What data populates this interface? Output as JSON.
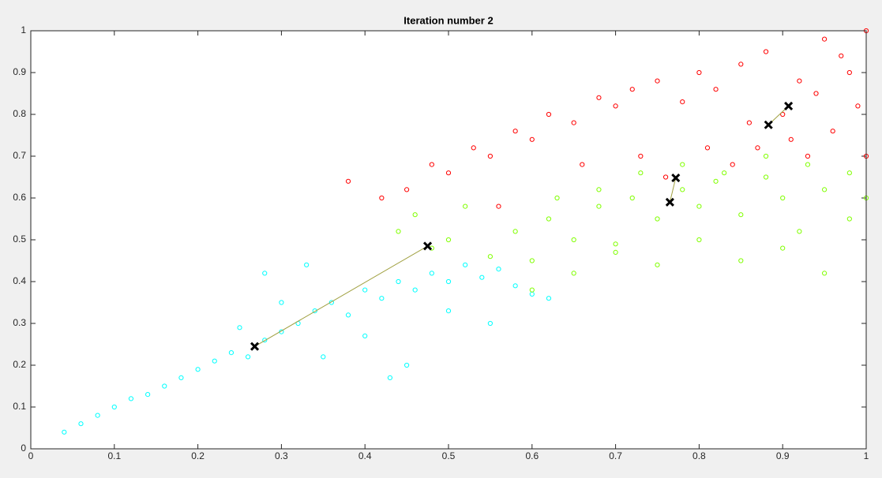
{
  "chart_data": {
    "type": "scatter",
    "title": "Iteration number 2",
    "xlim": [
      0,
      1
    ],
    "ylim": [
      0,
      1
    ],
    "xticks": [
      0,
      0.1,
      0.2,
      0.3,
      0.4,
      0.5,
      0.6,
      0.7,
      0.8,
      0.9,
      1
    ],
    "yticks": [
      0,
      0.1,
      0.2,
      0.3,
      0.4,
      0.5,
      0.6,
      0.7,
      0.8,
      0.9,
      1
    ],
    "series": [
      {
        "color": "#00ffff",
        "x": [
          0.04,
          0.06,
          0.08,
          0.1,
          0.12,
          0.14,
          0.16,
          0.18,
          0.2,
          0.22,
          0.24,
          0.26,
          0.28,
          0.3,
          0.32,
          0.34,
          0.36,
          0.38,
          0.4,
          0.42,
          0.44,
          0.46,
          0.48,
          0.5,
          0.52,
          0.54,
          0.56,
          0.58,
          0.6,
          0.62,
          0.25,
          0.3,
          0.35,
          0.4,
          0.45,
          0.5,
          0.55,
          0.28,
          0.33,
          0.43
        ],
        "values": [
          0.04,
          0.06,
          0.08,
          0.1,
          0.12,
          0.13,
          0.15,
          0.17,
          0.19,
          0.21,
          0.23,
          0.22,
          0.26,
          0.28,
          0.3,
          0.33,
          0.35,
          0.32,
          0.38,
          0.36,
          0.4,
          0.38,
          0.42,
          0.4,
          0.44,
          0.41,
          0.43,
          0.39,
          0.37,
          0.36,
          0.29,
          0.35,
          0.22,
          0.27,
          0.2,
          0.33,
          0.3,
          0.42,
          0.44,
          0.17
        ]
      },
      {
        "color": "#80ff00",
        "x": [
          0.44,
          0.46,
          0.48,
          0.5,
          0.52,
          0.55,
          0.58,
          0.6,
          0.62,
          0.65,
          0.68,
          0.7,
          0.72,
          0.75,
          0.78,
          0.8,
          0.82,
          0.85,
          0.88,
          0.9,
          0.92,
          0.95,
          0.98,
          1.0,
          0.6,
          0.65,
          0.7,
          0.75,
          0.8,
          0.85,
          0.9,
          0.95,
          0.63,
          0.68,
          0.73,
          0.78,
          0.83,
          0.88,
          0.93,
          0.98
        ],
        "values": [
          0.52,
          0.56,
          0.48,
          0.5,
          0.58,
          0.46,
          0.52,
          0.45,
          0.55,
          0.5,
          0.58,
          0.49,
          0.6,
          0.55,
          0.62,
          0.58,
          0.64,
          0.56,
          0.65,
          0.6,
          0.52,
          0.62,
          0.55,
          0.6,
          0.38,
          0.42,
          0.47,
          0.44,
          0.5,
          0.45,
          0.48,
          0.42,
          0.6,
          0.62,
          0.66,
          0.68,
          0.66,
          0.7,
          0.68,
          0.66
        ]
      },
      {
        "color": "#ff0000",
        "x": [
          0.38,
          0.42,
          0.45,
          0.48,
          0.5,
          0.53,
          0.55,
          0.58,
          0.6,
          0.62,
          0.65,
          0.68,
          0.7,
          0.72,
          0.75,
          0.78,
          0.8,
          0.82,
          0.85,
          0.88,
          0.9,
          0.92,
          0.95,
          0.98,
          1.0,
          0.96,
          0.93,
          0.87,
          0.84,
          0.99,
          0.97,
          0.94,
          0.91,
          0.86,
          0.81,
          0.76,
          0.66,
          0.56,
          0.73,
          1.0
        ],
        "values": [
          0.64,
          0.6,
          0.62,
          0.68,
          0.66,
          0.72,
          0.7,
          0.76,
          0.74,
          0.8,
          0.78,
          0.84,
          0.82,
          0.86,
          0.88,
          0.83,
          0.9,
          0.86,
          0.92,
          0.95,
          0.8,
          0.88,
          0.98,
          0.9,
          1.0,
          0.76,
          0.7,
          0.72,
          0.68,
          0.82,
          0.94,
          0.85,
          0.74,
          0.78,
          0.72,
          0.65,
          0.68,
          0.58,
          0.7,
          0.7
        ]
      }
    ],
    "centroids": {
      "color": "#a0a040",
      "marker_color": "#000000",
      "paths": [
        {
          "x": [
            0.475,
            0.268
          ],
          "values": [
            0.485,
            0.245
          ]
        },
        {
          "x": [
            0.772,
            0.765
          ],
          "values": [
            0.648,
            0.59
          ]
        },
        {
          "x": [
            0.883,
            0.907
          ],
          "values": [
            0.775,
            0.82
          ]
        }
      ]
    }
  }
}
